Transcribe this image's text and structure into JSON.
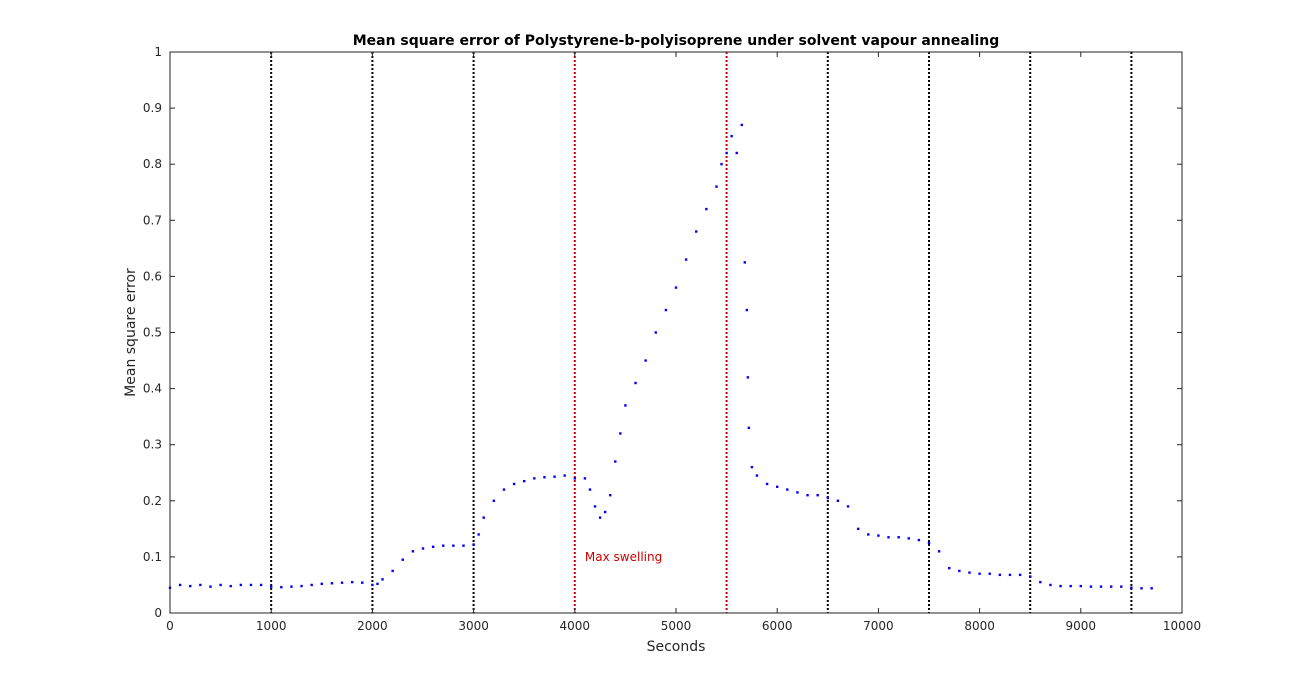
{
  "chart_data": {
    "type": "scatter",
    "title": "Mean square error of Polystyrene-b-polyisoprene under solvent vapour annealing",
    "xlabel": "Seconds",
    "ylabel": "Mean square error",
    "xlim": [
      0,
      10000
    ],
    "ylim": [
      0,
      1
    ],
    "xticks": [
      0,
      1000,
      2000,
      3000,
      4000,
      5000,
      6000,
      7000,
      8000,
      9000,
      10000
    ],
    "yticks": [
      0,
      0.1,
      0.2,
      0.3,
      0.4,
      0.5,
      0.6,
      0.7,
      0.8,
      0.9,
      1
    ],
    "grid": false,
    "point_color": "#0000ff",
    "series": [
      {
        "points": [
          [
            0,
            0.045
          ],
          [
            100,
            0.05
          ],
          [
            200,
            0.048
          ],
          [
            300,
            0.05
          ],
          [
            400,
            0.047
          ],
          [
            500,
            0.05
          ],
          [
            600,
            0.048
          ],
          [
            700,
            0.05
          ],
          [
            800,
            0.05
          ],
          [
            900,
            0.05
          ],
          [
            1000,
            0.047
          ],
          [
            1100,
            0.046
          ],
          [
            1200,
            0.047
          ],
          [
            1300,
            0.048
          ],
          [
            1400,
            0.05
          ],
          [
            1500,
            0.052
          ],
          [
            1600,
            0.053
          ],
          [
            1700,
            0.054
          ],
          [
            1800,
            0.055
          ],
          [
            1900,
            0.054
          ],
          [
            2000,
            0.05
          ],
          [
            2050,
            0.052
          ],
          [
            2100,
            0.06
          ],
          [
            2200,
            0.075
          ],
          [
            2300,
            0.095
          ],
          [
            2400,
            0.11
          ],
          [
            2500,
            0.115
          ],
          [
            2600,
            0.118
          ],
          [
            2700,
            0.12
          ],
          [
            2800,
            0.12
          ],
          [
            2900,
            0.12
          ],
          [
            3000,
            0.122
          ],
          [
            3050,
            0.14
          ],
          [
            3100,
            0.17
          ],
          [
            3200,
            0.2
          ],
          [
            3300,
            0.22
          ],
          [
            3400,
            0.23
          ],
          [
            3500,
            0.235
          ],
          [
            3600,
            0.24
          ],
          [
            3700,
            0.242
          ],
          [
            3800,
            0.243
          ],
          [
            3900,
            0.245
          ],
          [
            4000,
            0.24
          ],
          [
            4100,
            0.24
          ],
          [
            4150,
            0.22
          ],
          [
            4200,
            0.19
          ],
          [
            4250,
            0.17
          ],
          [
            4300,
            0.18
          ],
          [
            4350,
            0.21
          ],
          [
            4400,
            0.27
          ],
          [
            4450,
            0.32
          ],
          [
            4500,
            0.37
          ],
          [
            4600,
            0.41
          ],
          [
            4700,
            0.45
          ],
          [
            4800,
            0.5
          ],
          [
            4900,
            0.54
          ],
          [
            5000,
            0.58
          ],
          [
            5100,
            0.63
          ],
          [
            5200,
            0.68
          ],
          [
            5300,
            0.72
          ],
          [
            5400,
            0.76
          ],
          [
            5450,
            0.8
          ],
          [
            5500,
            0.82
          ],
          [
            5550,
            0.85
          ],
          [
            5600,
            0.82
          ],
          [
            5650,
            0.87
          ],
          [
            5680,
            0.625
          ],
          [
            5700,
            0.54
          ],
          [
            5710,
            0.42
          ],
          [
            5720,
            0.33
          ],
          [
            5750,
            0.26
          ],
          [
            5800,
            0.245
          ],
          [
            5900,
            0.23
          ],
          [
            6000,
            0.225
          ],
          [
            6100,
            0.22
          ],
          [
            6200,
            0.215
          ],
          [
            6300,
            0.21
          ],
          [
            6400,
            0.21
          ],
          [
            6500,
            0.205
          ],
          [
            6600,
            0.2
          ],
          [
            6700,
            0.19
          ],
          [
            6800,
            0.15
          ],
          [
            6900,
            0.14
          ],
          [
            7000,
            0.138
          ],
          [
            7100,
            0.135
          ],
          [
            7200,
            0.135
          ],
          [
            7300,
            0.133
          ],
          [
            7400,
            0.13
          ],
          [
            7500,
            0.125
          ],
          [
            7600,
            0.11
          ],
          [
            7700,
            0.08
          ],
          [
            7800,
            0.075
          ],
          [
            7900,
            0.072
          ],
          [
            8000,
            0.07
          ],
          [
            8100,
            0.07
          ],
          [
            8200,
            0.068
          ],
          [
            8300,
            0.068
          ],
          [
            8400,
            0.068
          ],
          [
            8500,
            0.065
          ],
          [
            8600,
            0.055
          ],
          [
            8700,
            0.05
          ],
          [
            8800,
            0.048
          ],
          [
            8900,
            0.048
          ],
          [
            9000,
            0.048
          ],
          [
            9100,
            0.047
          ],
          [
            9200,
            0.047
          ],
          [
            9300,
            0.047
          ],
          [
            9400,
            0.047
          ],
          [
            9500,
            0.045
          ],
          [
            9600,
            0.044
          ],
          [
            9700,
            0.044
          ]
        ]
      }
    ],
    "vlines": [
      {
        "x": 1000,
        "color": "#000000"
      },
      {
        "x": 2000,
        "color": "#000000"
      },
      {
        "x": 3000,
        "color": "#000000"
      },
      {
        "x": 4000,
        "color": "#cc0000"
      },
      {
        "x": 5500,
        "color": "#cc0000"
      },
      {
        "x": 6500,
        "color": "#000000"
      },
      {
        "x": 7500,
        "color": "#000000"
      },
      {
        "x": 8500,
        "color": "#000000"
      },
      {
        "x": 9500,
        "color": "#000000"
      }
    ],
    "annotations": [
      {
        "text": "Max swelling",
        "x": 4100,
        "y": 0.1,
        "color": "#cc0000"
      }
    ]
  }
}
